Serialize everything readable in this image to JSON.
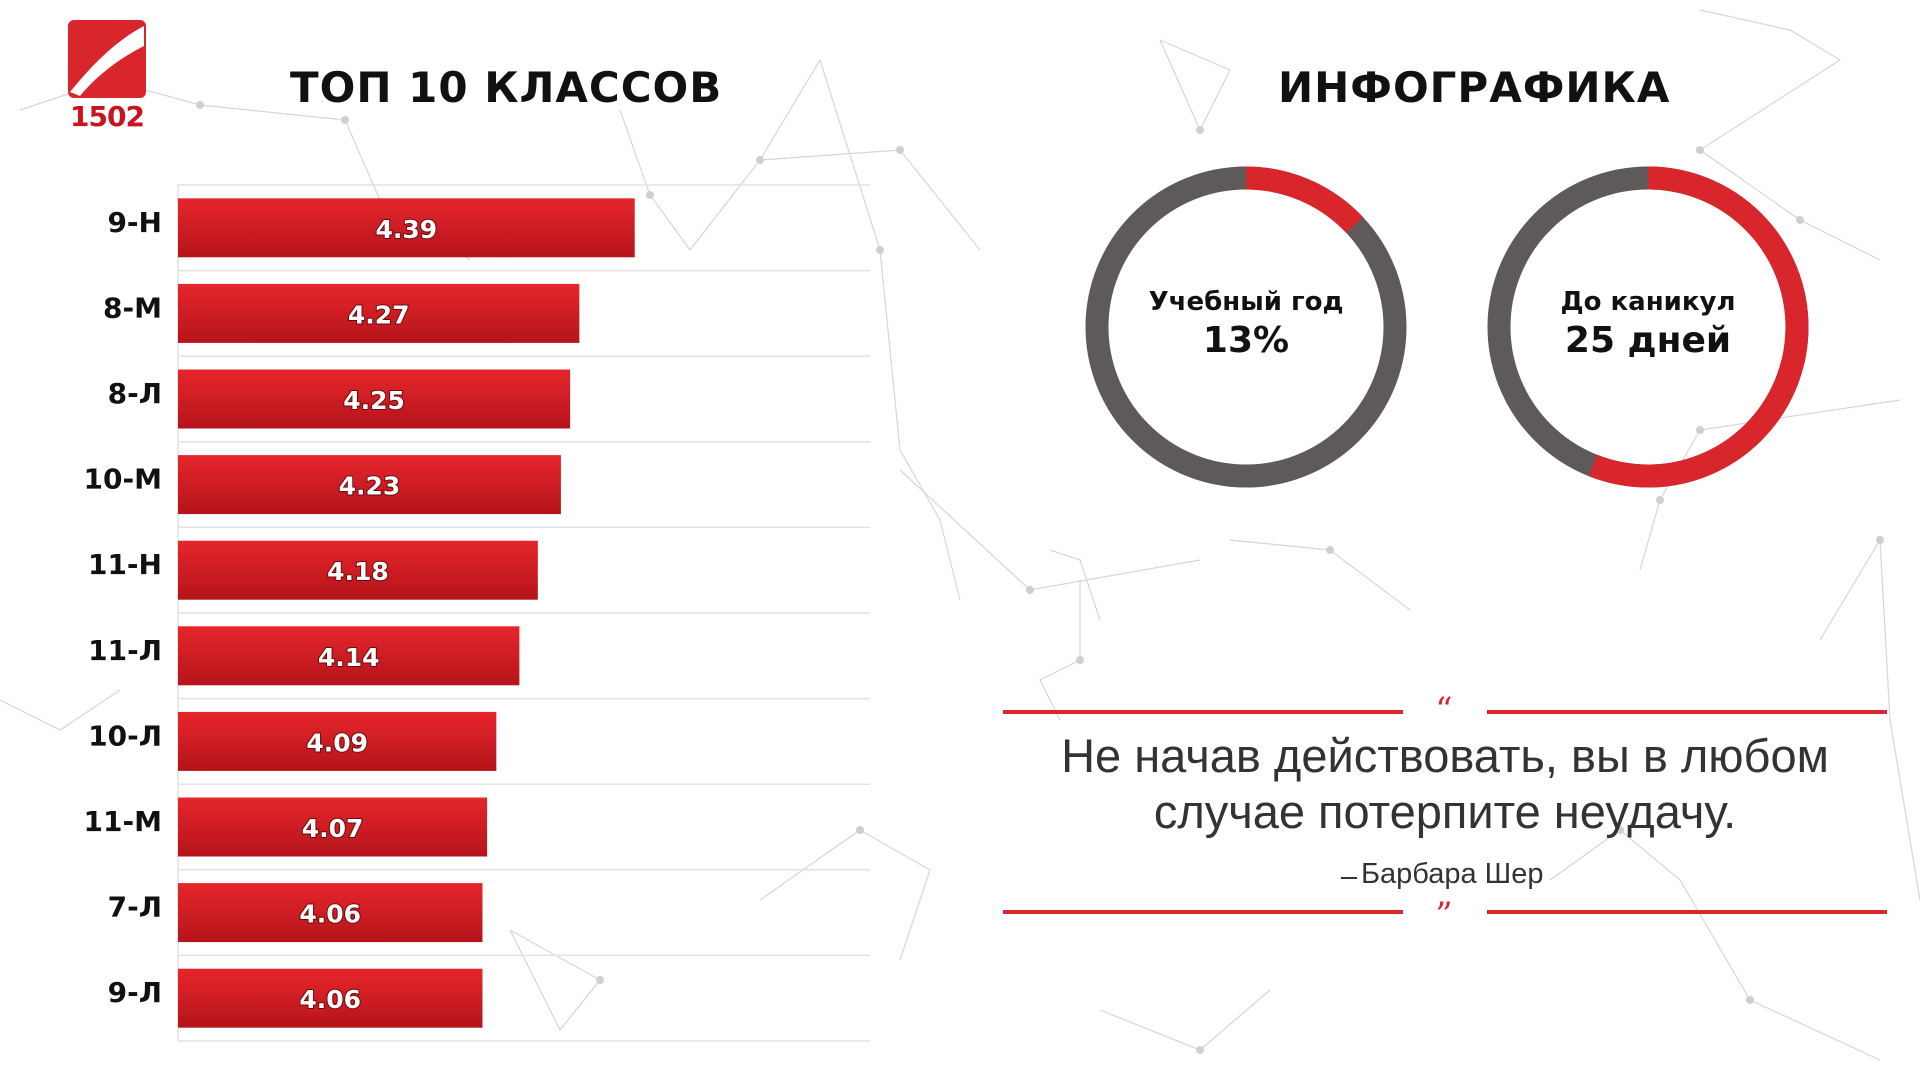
{
  "logo": {
    "text": "1502",
    "color": "#c8141c"
  },
  "title_left": "ТОП 10 КЛАССОВ",
  "title_right": "ИНФОГРАФИКА",
  "chart_data": {
    "type": "bar",
    "orientation": "horizontal",
    "categories": [
      "9-Н",
      "8-М",
      "8-Л",
      "10-М",
      "11-Н",
      "11-Л",
      "10-Л",
      "11-М",
      "7-Л",
      "9-Л"
    ],
    "values": [
      4.39,
      4.27,
      4.25,
      4.23,
      4.18,
      4.14,
      4.09,
      4.07,
      4.06,
      4.06
    ],
    "value_labels": [
      "4.39",
      "4.27",
      "4.25",
      "4.23",
      "4.18",
      "4.14",
      "4.09",
      "4.07",
      "4.06",
      "4.06"
    ],
    "xlim": [
      3.4,
      4.9
    ],
    "grid": true,
    "bar_color": "#d9262c",
    "title": "",
    "xlabel": "",
    "ylabel": ""
  },
  "infographic": {
    "year": {
      "label": "Учебный год",
      "value": "13%",
      "fraction": 0.13
    },
    "vacation": {
      "label": "До каникул",
      "value": "25 дней",
      "fraction": 0.56
    },
    "track_color": "#5e5a5a",
    "accent_color": "#d9262c"
  },
  "quote": {
    "open_mark": "“",
    "close_mark": "”",
    "text_line1": "Не начав действовать, вы в любом",
    "text_line2": "случае потерпите неудачу.",
    "author": "Барбара Шер"
  }
}
